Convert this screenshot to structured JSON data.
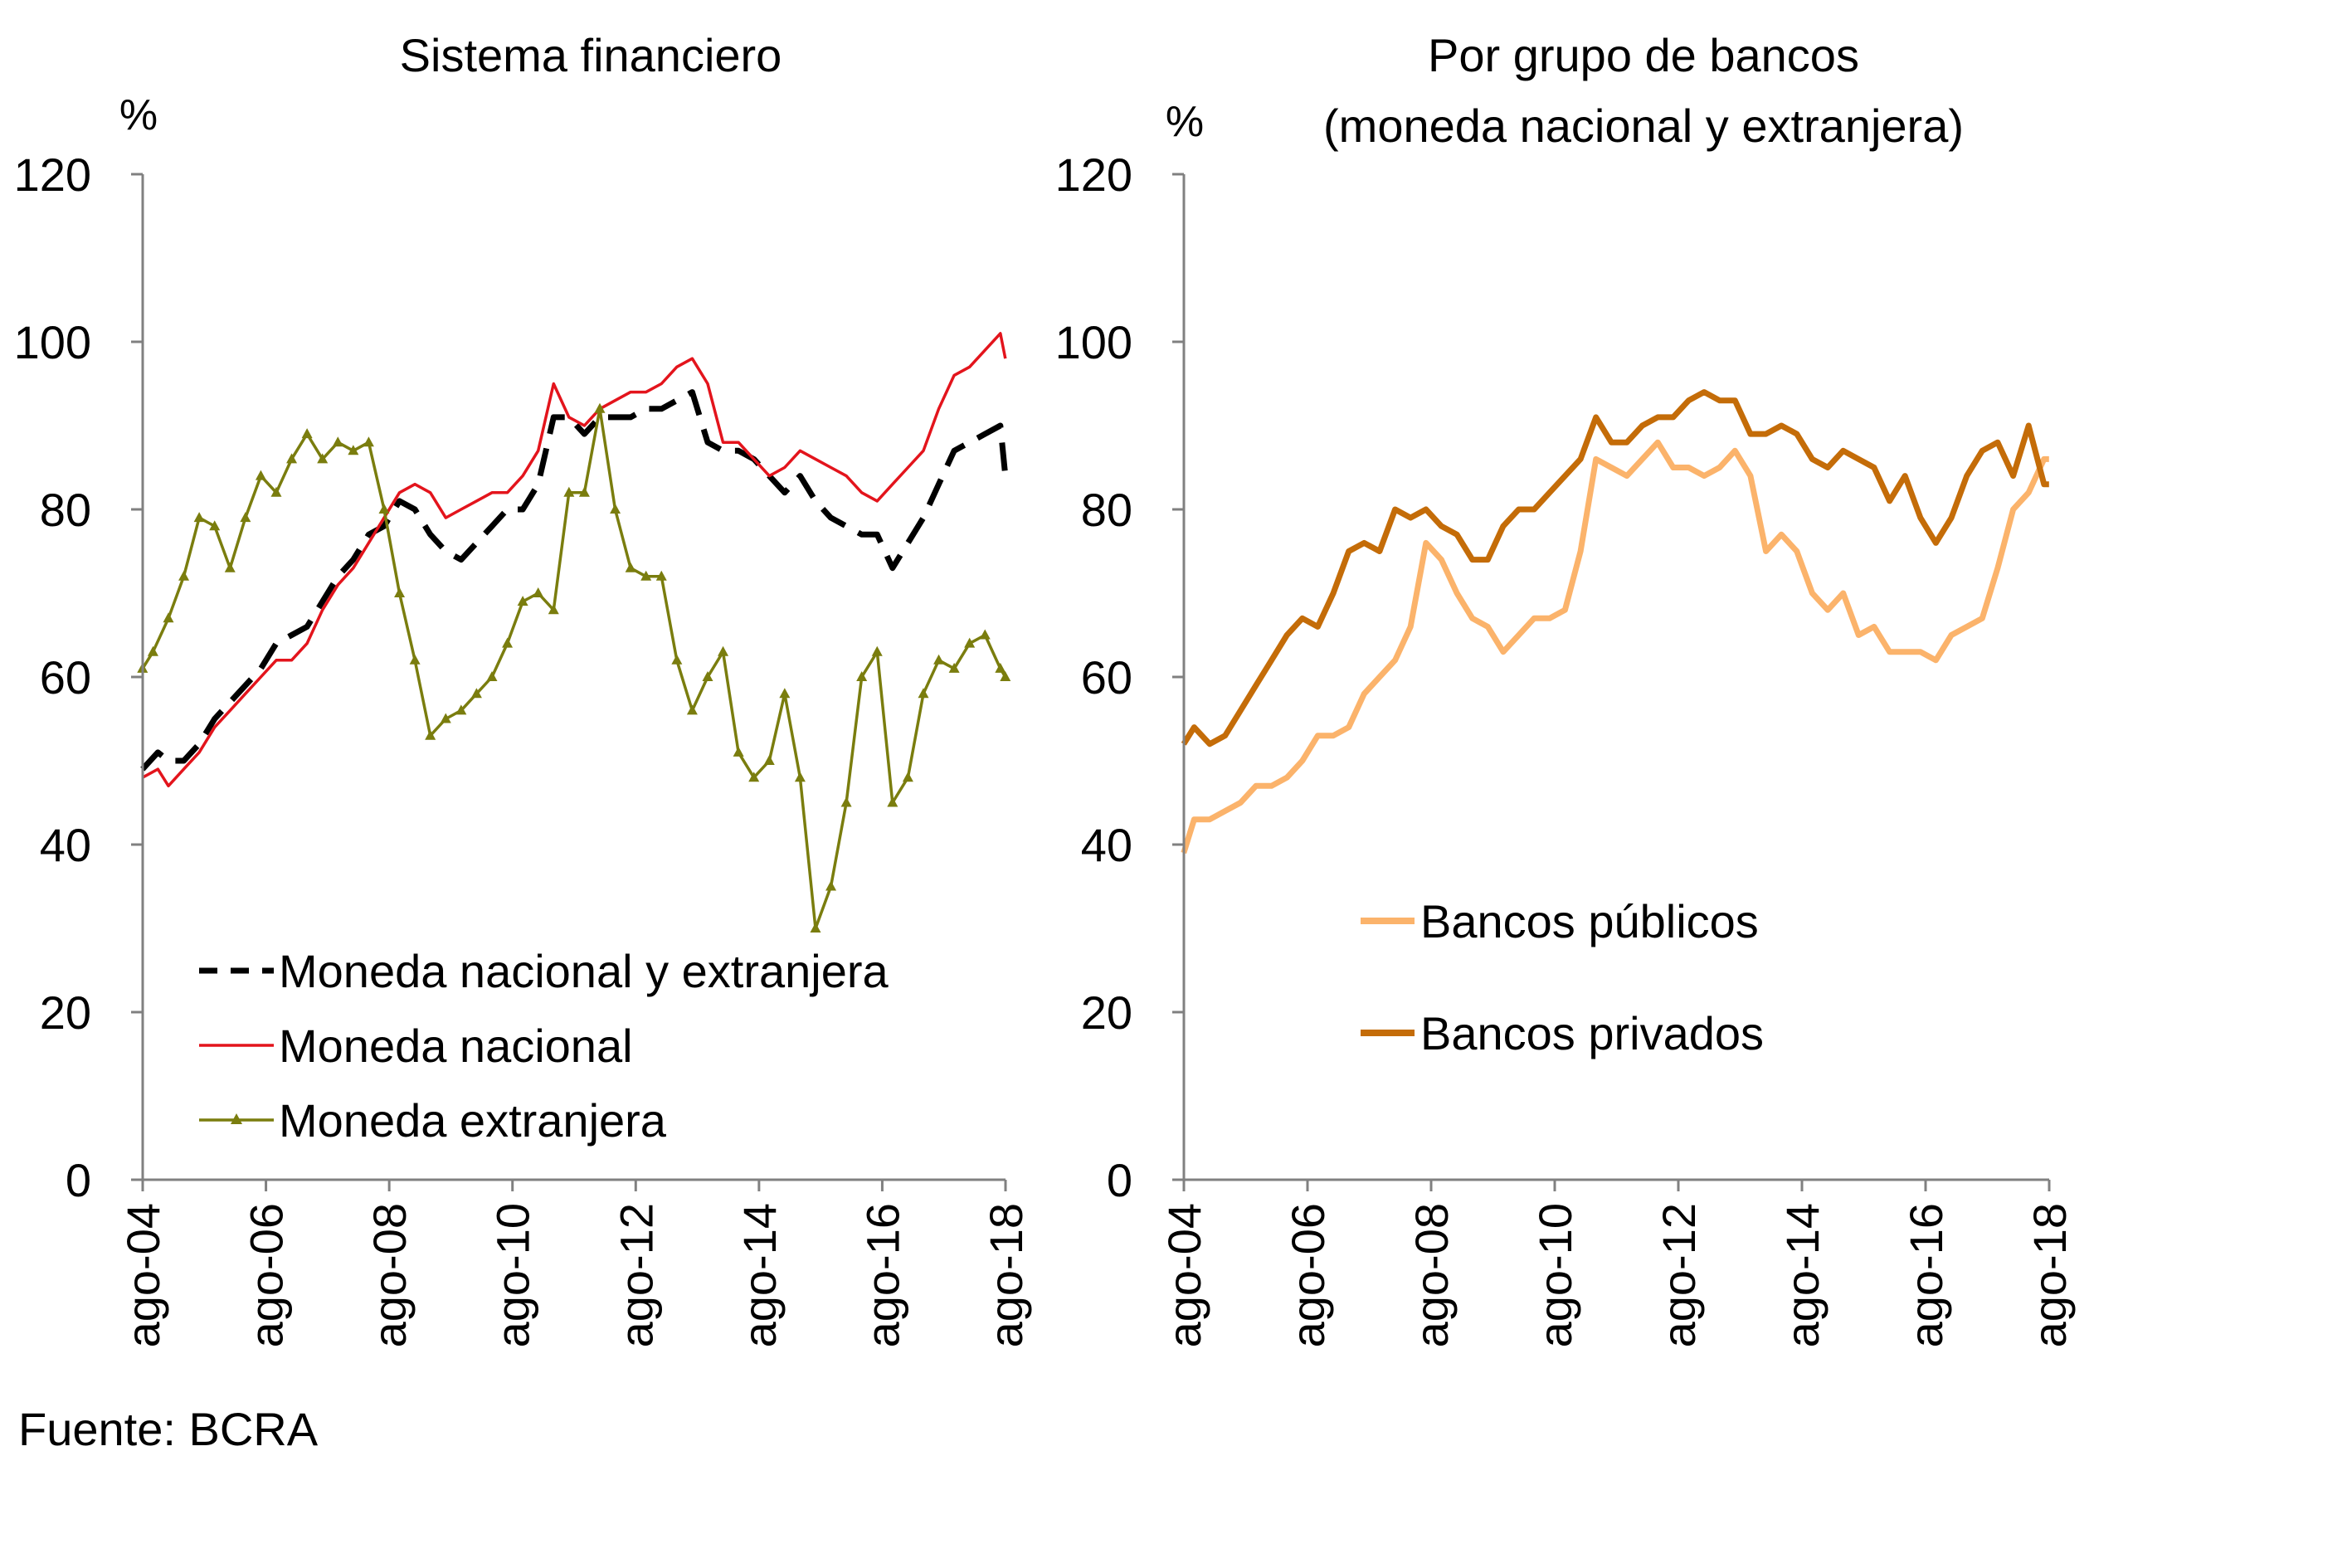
{
  "source": "Fuente:  BCRA",
  "chart_data": [
    {
      "type": "line",
      "title": "Sistema financiero",
      "ylabel": "%",
      "ylim": [
        0,
        120
      ],
      "yticks": [
        0,
        20,
        40,
        60,
        80,
        100,
        120
      ],
      "xlim": [
        2004.583,
        2018.583
      ],
      "xticks": [
        {
          "x": 2004.583,
          "label": "ago-04"
        },
        {
          "x": 2006.583,
          "label": "ago-06"
        },
        {
          "x": 2008.583,
          "label": "ago-08"
        },
        {
          "x": 2010.583,
          "label": "ago-10"
        },
        {
          "x": 2012.583,
          "label": "ago-12"
        },
        {
          "x": 2014.583,
          "label": "ago-14"
        },
        {
          "x": 2016.583,
          "label": "ago-16"
        },
        {
          "x": 2018.583,
          "label": "ago-18"
        }
      ],
      "legend_position": "bottom-left",
      "series": [
        {
          "name": "Moneda nacional y extranjera",
          "color": "#000000",
          "style": "dashed",
          "x": [
            2004.58,
            2004.83,
            2005.0,
            2005.25,
            2005.5,
            2005.75,
            2006.0,
            2006.25,
            2006.5,
            2006.75,
            2007.0,
            2007.25,
            2007.5,
            2007.75,
            2008.0,
            2008.25,
            2008.5,
            2008.75,
            2009.0,
            2009.25,
            2009.5,
            2009.75,
            2010.0,
            2010.25,
            2010.5,
            2010.75,
            2011.0,
            2011.25,
            2011.5,
            2011.75,
            2012.0,
            2012.25,
            2012.5,
            2012.75,
            2013.0,
            2013.25,
            2013.5,
            2013.75,
            2014.0,
            2014.25,
            2014.5,
            2014.75,
            2015.0,
            2015.25,
            2015.5,
            2015.75,
            2016.0,
            2016.25,
            2016.5,
            2016.75,
            2017.0,
            2017.25,
            2017.5,
            2017.75,
            2018.0,
            2018.25,
            2018.5,
            2018.58
          ],
          "values": [
            49,
            51,
            50,
            50,
            52,
            55,
            57,
            59,
            61,
            64,
            65,
            66,
            69,
            72,
            74,
            77,
            78,
            81,
            80,
            77,
            75,
            74,
            76,
            78,
            80,
            80,
            83,
            91,
            91,
            89,
            91,
            91,
            91,
            92,
            92,
            93,
            94,
            88,
            87,
            87,
            86,
            84,
            82,
            84,
            81,
            79,
            78,
            77,
            77,
            73,
            76,
            79,
            83,
            87,
            88,
            89,
            90,
            84
          ]
        },
        {
          "name": "Moneda nacional",
          "color": "#e3141c",
          "style": "solid",
          "x": [
            2004.58,
            2004.83,
            2005.0,
            2005.25,
            2005.5,
            2005.75,
            2006.0,
            2006.25,
            2006.5,
            2006.75,
            2007.0,
            2007.25,
            2007.5,
            2007.75,
            2008.0,
            2008.25,
            2008.5,
            2008.75,
            2009.0,
            2009.25,
            2009.5,
            2009.75,
            2010.0,
            2010.25,
            2010.5,
            2010.75,
            2011.0,
            2011.25,
            2011.5,
            2011.75,
            2012.0,
            2012.25,
            2012.5,
            2012.75,
            2013.0,
            2013.25,
            2013.5,
            2013.75,
            2014.0,
            2014.25,
            2014.5,
            2014.75,
            2015.0,
            2015.25,
            2015.5,
            2015.75,
            2016.0,
            2016.25,
            2016.5,
            2016.75,
            2017.0,
            2017.25,
            2017.5,
            2017.75,
            2018.0,
            2018.25,
            2018.5,
            2018.58
          ],
          "values": [
            48,
            49,
            47,
            49,
            51,
            54,
            56,
            58,
            60,
            62,
            62,
            64,
            68,
            71,
            73,
            76,
            79,
            82,
            83,
            82,
            79,
            80,
            81,
            82,
            82,
            84,
            87,
            95,
            91,
            90,
            92,
            93,
            94,
            94,
            95,
            97,
            98,
            95,
            88,
            88,
            86,
            84,
            85,
            87,
            86,
            85,
            84,
            82,
            81,
            83,
            85,
            87,
            92,
            96,
            97,
            99,
            101,
            98
          ]
        },
        {
          "name": "Moneda extranjera",
          "color": "#7a7d0e",
          "style": "solid-triangles",
          "x": [
            2004.58,
            2004.75,
            2005.0,
            2005.25,
            2005.5,
            2005.75,
            2006.0,
            2006.25,
            2006.5,
            2006.75,
            2007.0,
            2007.25,
            2007.5,
            2007.75,
            2008.0,
            2008.25,
            2008.5,
            2008.75,
            2009.0,
            2009.25,
            2009.5,
            2009.75,
            2010.0,
            2010.25,
            2010.5,
            2010.75,
            2011.0,
            2011.25,
            2011.5,
            2011.75,
            2012.0,
            2012.25,
            2012.5,
            2012.75,
            2013.0,
            2013.25,
            2013.5,
            2013.75,
            2014.0,
            2014.25,
            2014.5,
            2014.75,
            2015.0,
            2015.25,
            2015.5,
            2015.75,
            2016.0,
            2016.25,
            2016.5,
            2016.75,
            2017.0,
            2017.25,
            2017.5,
            2017.75,
            2018.0,
            2018.25,
            2018.5,
            2018.58
          ],
          "values": [
            61,
            63,
            67,
            72,
            79,
            78,
            73,
            79,
            84,
            82,
            86,
            89,
            86,
            88,
            87,
            88,
            80,
            70,
            62,
            53,
            55,
            56,
            58,
            60,
            64,
            69,
            70,
            68,
            82,
            82,
            92,
            80,
            73,
            72,
            72,
            62,
            56,
            60,
            63,
            51,
            48,
            50,
            58,
            48,
            30,
            35,
            45,
            60,
            63,
            45,
            48,
            58,
            62,
            61,
            64,
            65,
            61,
            60
          ]
        }
      ]
    },
    {
      "type": "line",
      "title": "Por grupo de bancos",
      "subtitle": "(moneda nacional y extranjera)",
      "ylabel": "%",
      "ylim": [
        0,
        120
      ],
      "yticks": [
        0,
        20,
        40,
        60,
        80,
        100,
        120
      ],
      "xlim": [
        2004.583,
        2018.583
      ],
      "xticks": [
        {
          "x": 2004.583,
          "label": "ago-04"
        },
        {
          "x": 2006.583,
          "label": "ago-06"
        },
        {
          "x": 2008.583,
          "label": "ago-08"
        },
        {
          "x": 2010.583,
          "label": "ago-10"
        },
        {
          "x": 2012.583,
          "label": "ago-12"
        },
        {
          "x": 2014.583,
          "label": "ago-14"
        },
        {
          "x": 2016.583,
          "label": "ago-16"
        },
        {
          "x": 2018.583,
          "label": "ago-18"
        }
      ],
      "legend_position": "center",
      "series": [
        {
          "name": "Bancos públicos",
          "color": "#fbb36b",
          "style": "solid",
          "x": [
            2004.58,
            2004.75,
            2005.0,
            2005.25,
            2005.5,
            2005.75,
            2006.0,
            2006.25,
            2006.5,
            2006.75,
            2007.0,
            2007.25,
            2007.5,
            2007.75,
            2008.0,
            2008.25,
            2008.5,
            2008.75,
            2009.0,
            2009.25,
            2009.5,
            2009.75,
            2010.0,
            2010.25,
            2010.5,
            2010.75,
            2011.0,
            2011.25,
            2011.5,
            2011.75,
            2012.0,
            2012.25,
            2012.5,
            2012.75,
            2013.0,
            2013.25,
            2013.5,
            2013.75,
            2014.0,
            2014.25,
            2014.5,
            2014.75,
            2015.0,
            2015.25,
            2015.5,
            2015.75,
            2016.0,
            2016.25,
            2016.5,
            2016.75,
            2017.0,
            2017.25,
            2017.5,
            2017.75,
            2018.0,
            2018.25,
            2018.5,
            2018.58
          ],
          "values": [
            39,
            43,
            43,
            44,
            45,
            47,
            47,
            48,
            50,
            53,
            53,
            54,
            58,
            60,
            62,
            66,
            76,
            74,
            70,
            67,
            66,
            63,
            65,
            67,
            67,
            68,
            75,
            86,
            85,
            84,
            86,
            88,
            85,
            85,
            84,
            85,
            87,
            84,
            75,
            77,
            75,
            70,
            68,
            70,
            65,
            66,
            63,
            63,
            63,
            62,
            65,
            66,
            67,
            73,
            80,
            82,
            86,
            86
          ]
        },
        {
          "name": "Bancos privados",
          "color": "#c46c08",
          "style": "solid",
          "x": [
            2004.58,
            2004.75,
            2005.0,
            2005.25,
            2005.5,
            2005.75,
            2006.0,
            2006.25,
            2006.5,
            2006.75,
            2007.0,
            2007.25,
            2007.5,
            2007.75,
            2008.0,
            2008.25,
            2008.5,
            2008.75,
            2009.0,
            2009.25,
            2009.5,
            2009.75,
            2010.0,
            2010.25,
            2010.5,
            2010.75,
            2011.0,
            2011.25,
            2011.5,
            2011.75,
            2012.0,
            2012.25,
            2012.5,
            2012.75,
            2013.0,
            2013.25,
            2013.5,
            2013.75,
            2014.0,
            2014.25,
            2014.5,
            2014.75,
            2015.0,
            2015.25,
            2015.5,
            2015.75,
            2016.0,
            2016.25,
            2016.5,
            2016.75,
            2017.0,
            2017.25,
            2017.5,
            2017.75,
            2018.0,
            2018.25,
            2018.5,
            2018.58
          ],
          "values": [
            52,
            54,
            52,
            53,
            56,
            59,
            62,
            65,
            67,
            66,
            70,
            75,
            76,
            75,
            80,
            79,
            80,
            78,
            77,
            74,
            74,
            78,
            80,
            80,
            82,
            84,
            86,
            91,
            88,
            88,
            90,
            91,
            91,
            93,
            94,
            93,
            93,
            89,
            89,
            90,
            89,
            86,
            85,
            87,
            86,
            85,
            81,
            84,
            79,
            76,
            79,
            84,
            87,
            88,
            84,
            90,
            83,
            83
          ]
        }
      ]
    }
  ]
}
